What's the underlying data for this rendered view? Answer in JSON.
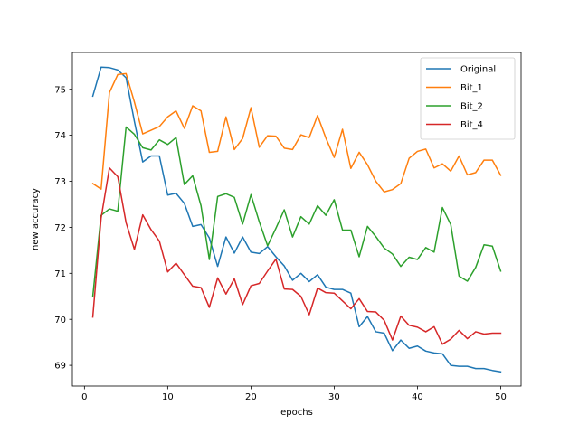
{
  "chart_data": {
    "type": "line",
    "title": "",
    "xlabel": "epochs",
    "ylabel": "new accuracy",
    "xlim": [
      -1.45,
      52.45
    ],
    "ylim": [
      68.55,
      75.8
    ],
    "xticks": [
      0,
      10,
      20,
      30,
      40,
      50
    ],
    "yticks": [
      69,
      70,
      71,
      72,
      73,
      74,
      75
    ],
    "grid": false,
    "legend_position": "top-right",
    "x": [
      1,
      2,
      3,
      4,
      5,
      6,
      7,
      8,
      9,
      10,
      11,
      12,
      13,
      14,
      15,
      16,
      17,
      18,
      19,
      20,
      21,
      22,
      23,
      24,
      25,
      26,
      27,
      28,
      29,
      30,
      31,
      32,
      33,
      34,
      35,
      36,
      37,
      38,
      39,
      40,
      41,
      42,
      43,
      44,
      45,
      46,
      47,
      48,
      49,
      50
    ],
    "series": [
      {
        "name": "Original",
        "color": "#1f77b4",
        "values": [
          74.85,
          75.48,
          75.47,
          75.42,
          75.25,
          74.3,
          73.42,
          73.55,
          73.55,
          72.7,
          72.74,
          72.52,
          72.02,
          72.06,
          71.77,
          71.15,
          71.79,
          71.44,
          71.79,
          71.46,
          71.43,
          71.58,
          71.36,
          71.16,
          70.85,
          71.0,
          70.82,
          70.97,
          70.7,
          70.65,
          70.65,
          70.57,
          69.84,
          70.06,
          69.73,
          69.7,
          69.32,
          69.55,
          69.37,
          69.42,
          69.31,
          69.27,
          69.25,
          69.0,
          68.98,
          68.98,
          68.93,
          68.93,
          68.89,
          68.86
        ]
      },
      {
        "name": "Bit_1",
        "color": "#ff7f0e",
        "values": [
          72.95,
          72.83,
          74.93,
          75.32,
          75.34,
          74.72,
          74.03,
          74.11,
          74.19,
          74.4,
          74.53,
          74.15,
          74.64,
          74.53,
          73.63,
          73.65,
          74.4,
          73.69,
          73.93,
          74.6,
          73.74,
          73.99,
          73.98,
          73.72,
          73.69,
          74.01,
          73.95,
          74.43,
          73.94,
          73.52,
          74.13,
          73.28,
          73.63,
          73.36,
          73.0,
          72.77,
          72.82,
          72.95,
          73.5,
          73.65,
          73.7,
          73.29,
          73.38,
          73.22,
          73.55,
          73.14,
          73.19,
          73.46,
          73.46,
          73.13
        ]
      },
      {
        "name": "Bit_2",
        "color": "#2ca02c",
        "values": [
          70.5,
          72.26,
          72.4,
          72.35,
          74.18,
          74.02,
          73.73,
          73.68,
          73.9,
          73.8,
          73.95,
          72.93,
          73.12,
          72.47,
          71.3,
          72.67,
          72.73,
          72.65,
          72.07,
          72.71,
          72.12,
          71.6,
          71.98,
          72.38,
          71.79,
          72.23,
          72.07,
          72.47,
          72.26,
          72.6,
          71.94,
          71.94,
          71.36,
          72.02,
          71.8,
          71.55,
          71.42,
          71.15,
          71.35,
          71.3,
          71.56,
          71.46,
          72.43,
          72.06,
          70.94,
          70.83,
          71.13,
          71.62,
          71.59,
          71.05
        ]
      },
      {
        "name": "Bit_4",
        "color": "#d62728",
        "values": [
          70.05,
          72.2,
          73.29,
          73.1,
          72.1,
          71.52,
          72.27,
          71.95,
          71.7,
          71.03,
          71.22,
          70.97,
          70.72,
          70.69,
          70.26,
          70.9,
          70.55,
          70.88,
          70.32,
          70.73,
          70.78,
          71.05,
          71.31,
          70.66,
          70.65,
          70.5,
          70.1,
          70.68,
          70.58,
          70.57,
          70.4,
          70.23,
          70.45,
          70.17,
          70.16,
          69.98,
          69.55,
          70.07,
          69.87,
          69.83,
          69.73,
          69.84,
          69.46,
          69.57,
          69.76,
          69.58,
          69.73,
          69.68,
          69.7,
          69.7
        ]
      }
    ]
  }
}
